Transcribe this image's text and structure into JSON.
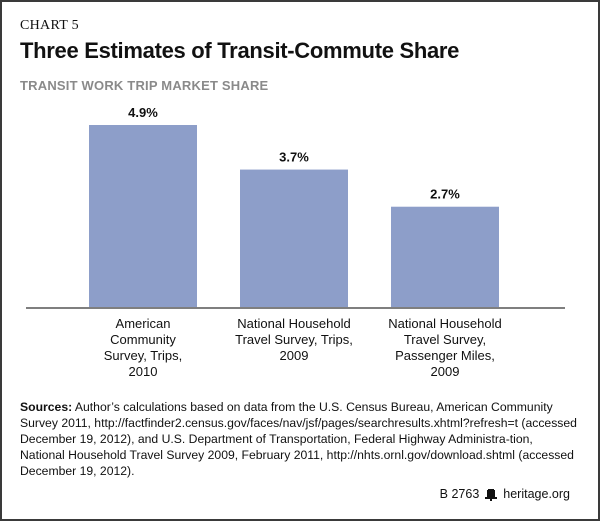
{
  "header": {
    "kicker": "CHART 5",
    "title": "Three Estimates of Transit-Commute Share",
    "subtitle": "TRANSIT WORK TRIP MARKET SHARE"
  },
  "colors": {
    "bar": "#8d9ec9",
    "axis": "#555555",
    "frame": "#3a3a3a"
  },
  "chart_data": {
    "type": "bar",
    "title": "Three Estimates of Transit-Commute Share",
    "subtitle": "TRANSIT WORK TRIP MARKET SHARE",
    "xlabel": "",
    "ylabel": "",
    "ylim": [
      0,
      5.5
    ],
    "grid": false,
    "legend": "none",
    "categories": [
      [
        "American",
        "Community",
        "Survey, Trips,",
        "2010"
      ],
      [
        "National Household",
        "Travel Survey, Trips,",
        "2009"
      ],
      [
        "National Household",
        "Travel Survey,",
        "Passenger Miles,",
        "2009"
      ]
    ],
    "values": [
      4.9,
      3.7,
      2.7
    ],
    "labels": [
      "4.9%",
      "3.7%",
      "2.7%"
    ]
  },
  "sources": {
    "label": "Sources:",
    "text": " Author’s calculations based on data from the U.S. Census Bureau, American Community Survey 2011, http://factfinder2.census.gov/faces/nav/jsf/pages/searchresults.xhtml?refresh=t (accessed December 19, 2012), and U.S. Department of Transportation, Federal Highway Administra-tion, National Household Travel Survey 2009, February 2011, http://nhts.ornl.gov/download.shtml (accessed December 19, 2012)."
  },
  "footer": {
    "code": "B 2763",
    "icon": "liberty-bell-icon",
    "site": "heritage.org"
  }
}
